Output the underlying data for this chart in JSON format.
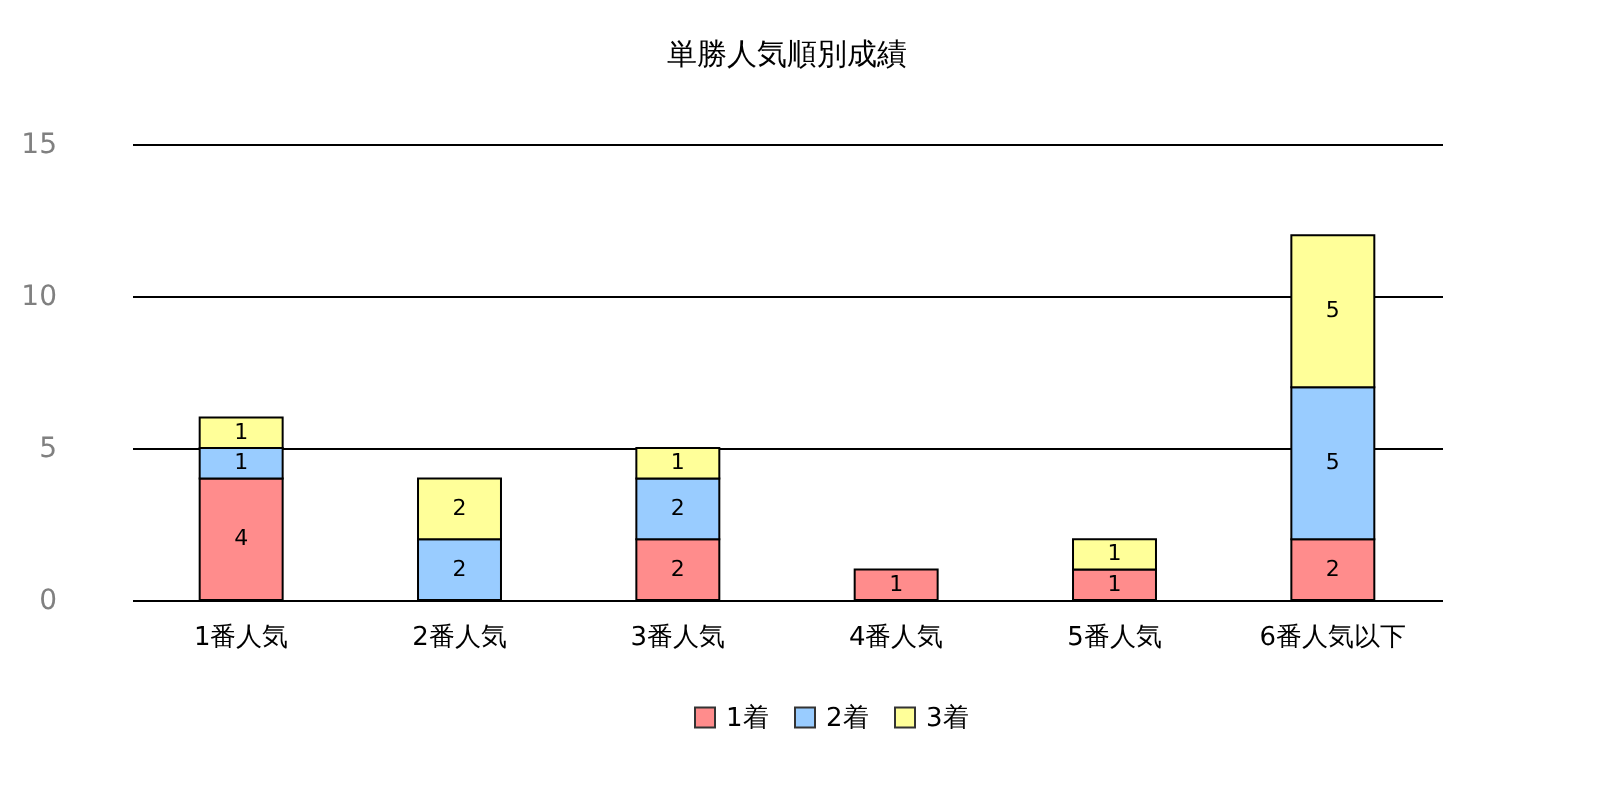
{
  "chart_data": {
    "type": "bar",
    "title": "単勝人気順別成績",
    "stacked": true,
    "data_labels": true,
    "legend": "bottom",
    "grid": "y",
    "categories": [
      "1番人気",
      "2番人気",
      "3番人気",
      "4番人気",
      "5番人気",
      "6番人気以下"
    ],
    "series": [
      {
        "name": "1着",
        "color": "#ff8c8c",
        "values": [
          4,
          null,
          2,
          1,
          1,
          2
        ]
      },
      {
        "name": "2着",
        "color": "#99ccff",
        "values": [
          1,
          2,
          2,
          null,
          null,
          5
        ]
      },
      {
        "name": "3着",
        "color": "#ffff99",
        "values": [
          1,
          2,
          1,
          null,
          1,
          5
        ]
      }
    ],
    "ylim": [
      0,
      15
    ],
    "yticks": [
      0,
      5,
      10,
      15
    ]
  }
}
